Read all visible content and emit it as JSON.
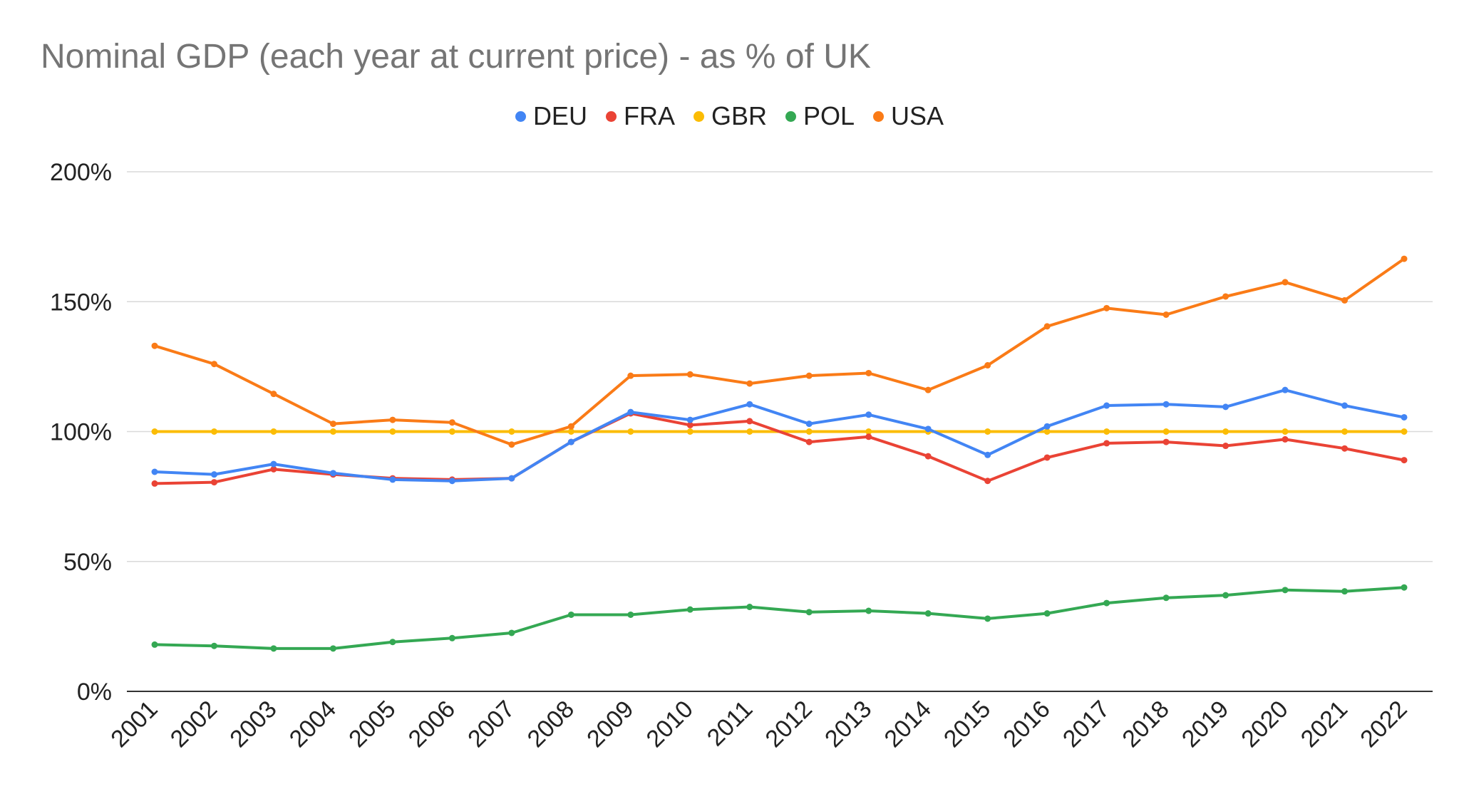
{
  "chart_data": {
    "type": "line",
    "title": "Nominal GDP (each year at current price) - as % of UK",
    "xlabel": "",
    "ylabel": "",
    "ylim": [
      0,
      200
    ],
    "yticks": [
      0,
      50,
      100,
      150,
      200
    ],
    "ytick_labels": [
      "0%",
      "50%",
      "100%",
      "150%",
      "200%"
    ],
    "x": [
      "2001",
      "2002",
      "2003",
      "2004",
      "2005",
      "2006",
      "2007",
      "2008",
      "2009",
      "2010",
      "2011",
      "2012",
      "2013",
      "2014",
      "2015",
      "2016",
      "2017",
      "2018",
      "2019",
      "2020",
      "2021",
      "2022"
    ],
    "legend_position": "top-center",
    "grid": true,
    "series": [
      {
        "name": "DEU",
        "color": "#4285f4",
        "values": [
          84.5,
          83.5,
          87.5,
          84.0,
          81.5,
          81.0,
          82.0,
          96.0,
          107.5,
          104.5,
          110.5,
          103.0,
          106.5,
          101.0,
          91.0,
          102.0,
          110.0,
          110.5,
          109.5,
          116.0,
          110.0,
          105.5
        ]
      },
      {
        "name": "FRA",
        "color": "#ea4335",
        "values": [
          80.0,
          80.5,
          85.5,
          83.5,
          82.0,
          81.5,
          82.0,
          96.0,
          107.0,
          102.5,
          104.0,
          96.0,
          98.0,
          90.5,
          81.0,
          90.0,
          95.5,
          96.0,
          94.5,
          97.0,
          93.5,
          89.0
        ]
      },
      {
        "name": "GBR",
        "color": "#fbbc04",
        "values": [
          100,
          100,
          100,
          100,
          100,
          100,
          100,
          100,
          100,
          100,
          100,
          100,
          100,
          100,
          100,
          100,
          100,
          100,
          100,
          100,
          100,
          100
        ]
      },
      {
        "name": "POL",
        "color": "#34a853",
        "values": [
          18.0,
          17.5,
          16.5,
          16.5,
          19.0,
          20.5,
          22.5,
          29.5,
          29.5,
          31.5,
          32.5,
          30.5,
          31.0,
          30.0,
          28.0,
          30.0,
          34.0,
          36.0,
          37.0,
          39.0,
          38.5,
          40.0
        ]
      },
      {
        "name": "USA",
        "color": "#fa7b17",
        "values": [
          133.0,
          126.0,
          114.5,
          103.0,
          104.5,
          103.5,
          95.0,
          102.0,
          121.5,
          122.0,
          118.5,
          121.5,
          122.5,
          116.0,
          125.5,
          140.5,
          147.5,
          145.0,
          152.0,
          157.5,
          150.5,
          166.5
        ]
      }
    ]
  },
  "colors": {
    "title": "#757575",
    "text": "#222222",
    "gridline": "#d9d9d9",
    "axis_line": "#333333"
  }
}
